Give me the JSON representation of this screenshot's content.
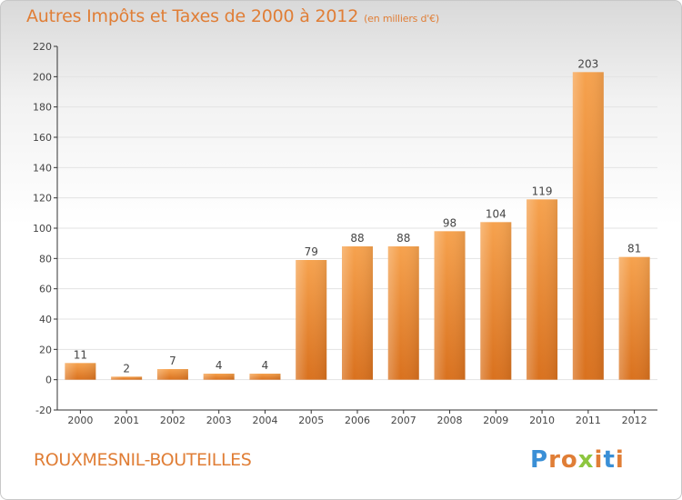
{
  "title": "Autres Impôts et Taxes de 2000 à 2012",
  "subtitle": "(en milliers d'€)",
  "location": "ROUXMESNIL-BOUTEILLES",
  "brand": {
    "name": "Proxiti",
    "letters": [
      {
        "ch": "P",
        "color": "#3a8fd6"
      },
      {
        "ch": "r",
        "color": "#e07e36"
      },
      {
        "ch": "o",
        "color": "#e07e36"
      },
      {
        "ch": "x",
        "color": "#8dc63f"
      },
      {
        "ch": "i",
        "color": "#e07e36"
      },
      {
        "ch": "t",
        "color": "#3a8fd6"
      },
      {
        "ch": "i",
        "color": "#e07e36"
      }
    ]
  },
  "colors": {
    "bar_light": "#f6a24e",
    "bar_dark": "#d9711e",
    "bar_bottom": "#c8651a",
    "accent": "#e07e36",
    "grid": "#e3e3e3",
    "axis": "#333333"
  },
  "chart_data": {
    "type": "bar",
    "categories": [
      "2000",
      "2001",
      "2002",
      "2003",
      "2004",
      "2005",
      "2006",
      "2007",
      "2008",
      "2009",
      "2010",
      "2011",
      "2012"
    ],
    "values": [
      11,
      2,
      7,
      4,
      4,
      79,
      88,
      88,
      98,
      104,
      119,
      203,
      81
    ],
    "ylim": [
      -20,
      220
    ],
    "yticks": [
      -20,
      0,
      20,
      40,
      60,
      80,
      100,
      120,
      140,
      160,
      180,
      200,
      220
    ],
    "grid": true,
    "legend": "none"
  }
}
